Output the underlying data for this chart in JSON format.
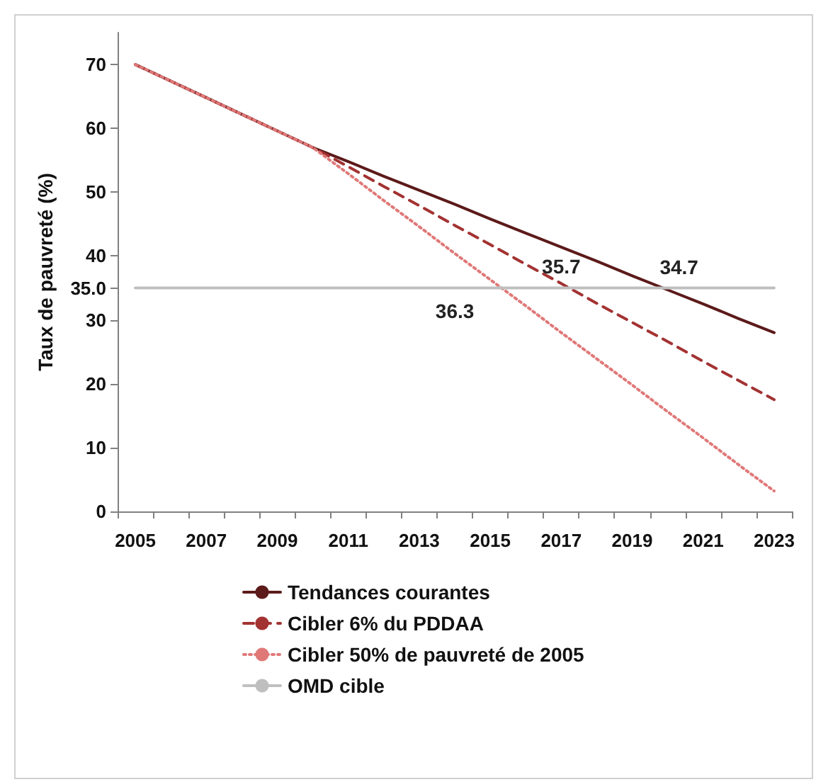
{
  "chart_data": {
    "type": "line",
    "ylabel": "Taux de pauvreté (%)",
    "categories": [
      "2005",
      null,
      "2007",
      null,
      "2009",
      null,
      "2011",
      null,
      "2013",
      null,
      "2015",
      null,
      "2017",
      null,
      "2019",
      null,
      "2021",
      null,
      "2023"
    ],
    "series": [
      {
        "name": "Tendances courantes",
        "color": "#5c1a1a",
        "line_style": "solid",
        "values": [
          70,
          67.4,
          64.8,
          62.2,
          59.6,
          57,
          54.8,
          52.5,
          50.3,
          48.1,
          45.8,
          43.6,
          41.4,
          39.2,
          36.9,
          34.7,
          32.5,
          30.2,
          28.0
        ],
        "value_labels": [
          null,
          null,
          null,
          null,
          null,
          null,
          null,
          null,
          null,
          null,
          null,
          null,
          null,
          null,
          null,
          "34.7",
          null,
          null,
          null
        ]
      },
      {
        "name": "Cibler 6% du PDDAA",
        "color": "#a33232",
        "line_style": "dashed",
        "values": [
          70,
          67.4,
          64.8,
          62.2,
          59.6,
          57,
          54.0,
          50.9,
          47.9,
          44.8,
          41.8,
          38.7,
          35.7,
          32.6,
          29.6,
          26.6,
          23.5,
          20.5,
          17.5
        ],
        "value_labels": [
          null,
          null,
          null,
          null,
          null,
          null,
          null,
          null,
          null,
          null,
          null,
          null,
          "35.7",
          null,
          null,
          null,
          null,
          null,
          null
        ]
      },
      {
        "name": "Cibler 50% de pauvreté de 2005",
        "color": "#e07878",
        "line_style": "dotted",
        "values": [
          70,
          67.4,
          64.8,
          62.2,
          59.6,
          57,
          52.9,
          48.7,
          44.6,
          40.4,
          36.3,
          32.2,
          28.0,
          23.9,
          19.8,
          15.6,
          11.5,
          7.3,
          3.2
        ],
        "value_labels": [
          null,
          null,
          null,
          null,
          null,
          null,
          null,
          null,
          null,
          null,
          "36.3",
          null,
          null,
          null,
          null,
          null,
          null,
          null,
          null
        ]
      },
      {
        "name": "OMD cible",
        "color": "#bfbfbf",
        "line_style": "solid",
        "values": [
          35,
          35,
          35,
          35,
          35,
          35,
          35,
          35,
          35,
          35,
          35,
          35,
          35,
          35,
          35,
          35,
          35,
          35,
          35
        ]
      }
    ],
    "ylim": [
      0,
      75
    ],
    "yticks": [
      0,
      10,
      20,
      30,
      {
        "value": 35,
        "label": "35.0"
      },
      40,
      50,
      60,
      70
    ],
    "grid": false,
    "legend": "bottom",
    "marker": "none"
  }
}
